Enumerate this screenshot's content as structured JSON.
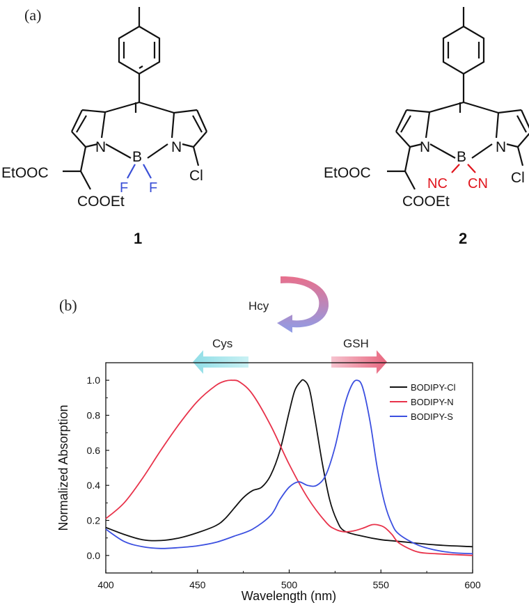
{
  "panel_a": {
    "label": "(a)",
    "compound_1": {
      "number": "1",
      "ester_left": "EtOOC",
      "ester_bottom": "COOEt",
      "n_left": "N",
      "boron": "B",
      "n_right": "N",
      "sub_left": "F",
      "sub_right": "F",
      "chloro": "Cl",
      "sub_color": "#3a4fd6"
    },
    "compound_2": {
      "number": "2",
      "ester_left": "EtOOC",
      "ester_bottom": "COOEt",
      "n_left": "N",
      "boron": "B",
      "n_right": "N",
      "sub_left": "NC",
      "sub_right": "CN",
      "chloro": "Cl",
      "sub_color": "#e0141c"
    }
  },
  "panel_b": {
    "label": "(b)",
    "arrow_top_label": "Hcy",
    "arrow_left_label": "Cys",
    "arrow_right_label": "GSH"
  },
  "chart_data": {
    "type": "line",
    "title": "",
    "xlabel": "Wavelength (nm)",
    "ylabel": "Normalized Absorption",
    "xlim": [
      400,
      600
    ],
    "ylim": [
      -0.1,
      1.1
    ],
    "xticks": [
      400,
      450,
      500,
      550,
      600
    ],
    "xtick_labels": [
      "400",
      "450",
      "500",
      "550",
      "600"
    ],
    "yticks": [
      0.0,
      0.2,
      0.4,
      0.6,
      0.8,
      1.0
    ],
    "ytick_labels": [
      "0.0",
      "0.2",
      "0.4",
      "0.6",
      "0.8",
      "1.0"
    ],
    "grid": false,
    "legend_position": "top-right",
    "series": [
      {
        "name": "BODIPY-Cl",
        "color": "#111111",
        "x": [
          400,
          410,
          420,
          430,
          440,
          450,
          460,
          465,
          470,
          475,
          480,
          485,
          490,
          495,
          500,
          503,
          506,
          508,
          511,
          514,
          518,
          522,
          526,
          530,
          540,
          550,
          560,
          580,
          600
        ],
        "y": [
          0.16,
          0.12,
          0.09,
          0.085,
          0.1,
          0.13,
          0.17,
          0.21,
          0.27,
          0.33,
          0.37,
          0.39,
          0.46,
          0.6,
          0.82,
          0.94,
          0.99,
          1.0,
          0.95,
          0.78,
          0.53,
          0.32,
          0.2,
          0.14,
          0.11,
          0.09,
          0.08,
          0.06,
          0.05
        ]
      },
      {
        "name": "BODIPY-N",
        "color": "#e8324a",
        "x": [
          400,
          410,
          420,
          430,
          440,
          450,
          460,
          465,
          469,
          473,
          480,
          490,
          500,
          510,
          520,
          525,
          530,
          535,
          540,
          545,
          548,
          552,
          556,
          560,
          570,
          580,
          590,
          600
        ],
        "y": [
          0.21,
          0.3,
          0.44,
          0.6,
          0.75,
          0.88,
          0.97,
          0.995,
          1.0,
          0.99,
          0.92,
          0.74,
          0.52,
          0.33,
          0.19,
          0.15,
          0.135,
          0.14,
          0.155,
          0.175,
          0.175,
          0.16,
          0.12,
          0.07,
          0.02,
          0.01,
          0.005,
          0.0
        ]
      },
      {
        "name": "BODIPY-S",
        "color": "#3b4fe0",
        "x": [
          400,
          410,
          420,
          430,
          440,
          450,
          460,
          470,
          480,
          490,
          495,
          500,
          505,
          510,
          515,
          520,
          525,
          530,
          534,
          537,
          540,
          544,
          548,
          552,
          556,
          560,
          570,
          580,
          590,
          600
        ],
        "y": [
          0.15,
          0.08,
          0.05,
          0.04,
          0.045,
          0.055,
          0.075,
          0.11,
          0.15,
          0.23,
          0.32,
          0.39,
          0.42,
          0.4,
          0.4,
          0.46,
          0.62,
          0.85,
          0.97,
          1.0,
          0.96,
          0.77,
          0.5,
          0.3,
          0.18,
          0.12,
          0.06,
          0.03,
          0.015,
          0.01
        ]
      }
    ]
  }
}
